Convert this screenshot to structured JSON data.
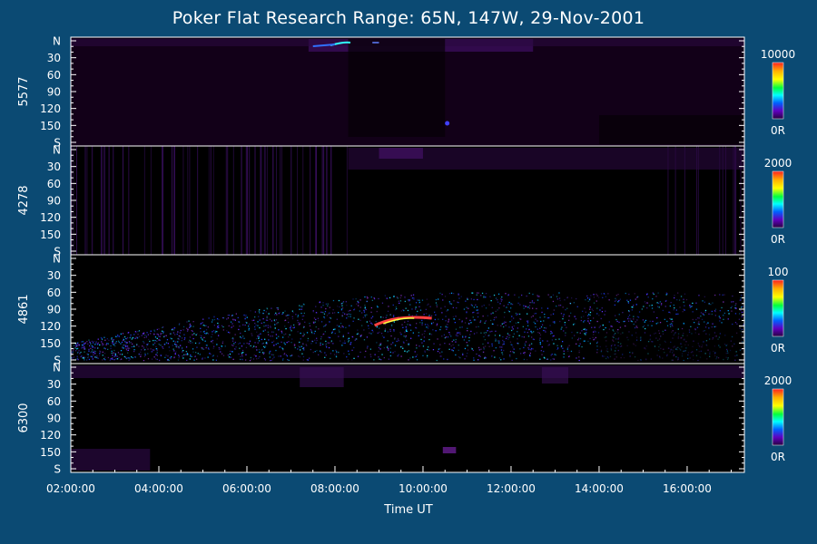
{
  "chart_data": {
    "type": "heatmap",
    "title": "Poker Flat Research Range: 65N, 147W, 29-Nov-2001",
    "xlabel": "Time UT",
    "xticks": [
      "02:00:00",
      "04:00:00",
      "06:00:00",
      "08:00:00",
      "10:00:00",
      "12:00:00",
      "14:00:00",
      "16:00:00"
    ],
    "x_tick_hours": [
      2,
      4,
      6,
      8,
      10,
      12,
      14,
      16
    ],
    "xlim_hours": [
      2,
      17.3
    ],
    "y_range_deg": [
      0,
      180
    ],
    "y_tick_labels": [
      "N",
      "30",
      "60",
      "90",
      "120",
      "150",
      "S"
    ],
    "y_tick_values": [
      0,
      30,
      60,
      90,
      120,
      150,
      180
    ],
    "panels": [
      {
        "ylabel": "5577",
        "colorbar_max": "10000",
        "colorbar_min": "0R"
      },
      {
        "ylabel": "4278",
        "colorbar_max": "2000",
        "colorbar_min": "0R"
      },
      {
        "ylabel": "4861",
        "colorbar_max": "100",
        "colorbar_min": "0R"
      },
      {
        "ylabel": "6300",
        "colorbar_max": "2000",
        "colorbar_min": "0R"
      }
    ],
    "colorbar_colors": [
      "#ff2020",
      "#ffb000",
      "#ffff00",
      "#00ff40",
      "#00ffff",
      "#0060ff",
      "#6000c0",
      "#280040"
    ]
  }
}
